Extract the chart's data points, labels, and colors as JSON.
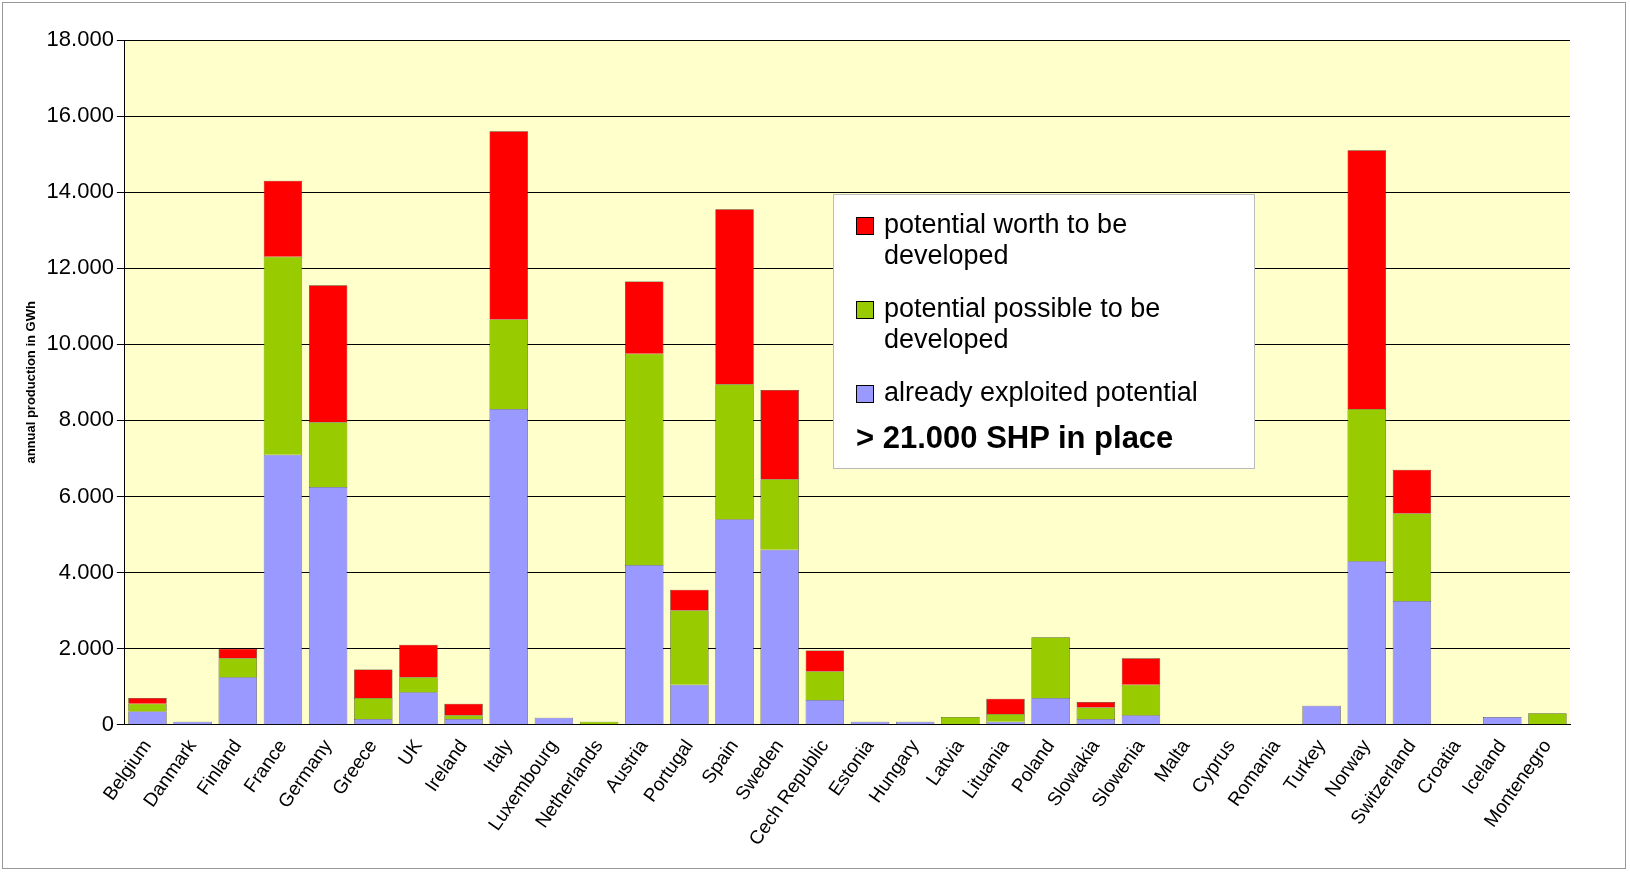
{
  "chart_data": {
    "type": "bar",
    "stacked": true,
    "ylabel": "annual production in GWh",
    "categories": [
      "Belgium",
      "Danmark",
      "Finland",
      "France",
      "Germany",
      "Greece",
      "UK",
      "Ireland",
      "Italy",
      "Luxembourg",
      "Netherlands",
      "Austria",
      "Portugal",
      "Spain",
      "Sweden",
      "Cech Republic",
      "Estonia",
      "Hungary",
      "Latvia",
      "Lituania",
      "Poland",
      "Slowakia",
      "Slowenia",
      "Malta",
      "Cyprus",
      "Romania",
      "Turkey",
      "Norway",
      "Switzerland",
      "Croatia",
      "Iceland",
      "Montenegro"
    ],
    "series": [
      {
        "name": "already exploited potential",
        "color": "#9999ff",
        "values": [
          350,
          80,
          1250,
          7100,
          6250,
          150,
          850,
          150,
          8300,
          180,
          0,
          4200,
          1050,
          5400,
          4600,
          650,
          80,
          80,
          0,
          80,
          700,
          150,
          250,
          0,
          0,
          0,
          500,
          4300,
          3250,
          0,
          200,
          0
        ]
      },
      {
        "name": "potential possible to be developed",
        "color": "#99cc00",
        "values": [
          200,
          0,
          500,
          5200,
          1700,
          550,
          400,
          100,
          2350,
          0,
          80,
          5550,
          1950,
          3550,
          1850,
          750,
          0,
          0,
          200,
          200,
          1600,
          300,
          800,
          0,
          0,
          0,
          0,
          4000,
          2300,
          0,
          0,
          300
        ]
      },
      {
        "name": "potential worth to be developed",
        "color": "#ff0000",
        "values": [
          150,
          0,
          250,
          2000,
          3600,
          750,
          850,
          300,
          4950,
          0,
          0,
          1900,
          550,
          4600,
          2350,
          550,
          0,
          0,
          0,
          400,
          0,
          150,
          700,
          0,
          0,
          0,
          0,
          6800,
          1150,
          0,
          0,
          0
        ]
      }
    ],
    "ylim": [
      0,
      18000
    ],
    "yticks": [
      {
        "value": 0,
        "label": "0"
      },
      {
        "value": 2000,
        "label": "2.000"
      },
      {
        "value": 4000,
        "label": "4.000"
      },
      {
        "value": 6000,
        "label": "6.000"
      },
      {
        "value": 8000,
        "label": "8.000"
      },
      {
        "value": 10000,
        "label": "10.000"
      },
      {
        "value": 12000,
        "label": "12.000"
      },
      {
        "value": 14000,
        "label": "14.000"
      },
      {
        "value": 16000,
        "label": "16.000"
      },
      {
        "value": 18000,
        "label": "18.000"
      }
    ],
    "grid": "y",
    "legend": "top right",
    "annotations": [
      "> 21.000 SHP in place"
    ]
  }
}
